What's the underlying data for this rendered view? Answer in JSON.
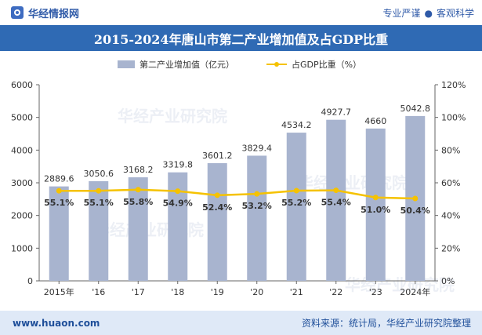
{
  "brand": {
    "name": "华经情报网",
    "logo_icon": "huajing-logo-icon"
  },
  "tagline": {
    "left": "专业严谨",
    "separator": "●",
    "right": "客观科学"
  },
  "footer": {
    "url": "www.huaon.com",
    "source": "资料来源：统计局，华经产业研究院整理"
  },
  "watermark": {
    "text": "华经产业研究院"
  },
  "colors": {
    "bar": "#a8b4cf",
    "line": "#f5c200",
    "title_bg": "#2f6ab4"
  },
  "chart_data": {
    "type": "bar",
    "title": "2015-2024年唐山市第二产业增加值及占GDP比重",
    "categories": [
      "2015年",
      "'16",
      "'17",
      "'18",
      "'19",
      "'20",
      "'21",
      "'22",
      "'23",
      "2024年"
    ],
    "series": [
      {
        "name": "第二产业增加值（亿元）",
        "type": "bar",
        "axis": "left",
        "values": [
          2889.6,
          3050.6,
          3168.2,
          3319.8,
          3601.2,
          3829.4,
          4534.2,
          4927.7,
          4660,
          5042.8
        ],
        "labels": [
          "2889.6",
          "3050.6",
          "3168.2",
          "3319.8",
          "3601.2",
          "3829.4",
          "4534.2",
          "4927.7",
          "4660",
          "5042.8"
        ]
      },
      {
        "name": "占GDP比重（%）",
        "type": "line",
        "axis": "right",
        "values": [
          55.1,
          55.1,
          55.8,
          54.9,
          52.4,
          53.2,
          55.2,
          55.4,
          51.0,
          50.4
        ],
        "labels": [
          "55.1%",
          "55.1%",
          "55.8%",
          "54.9%",
          "52.4%",
          "53.2%",
          "55.2%",
          "55.4%",
          "51.0%",
          "50.4%"
        ]
      }
    ],
    "y_left": {
      "range": [
        0,
        6000
      ],
      "ticks": [
        0,
        1000,
        2000,
        3000,
        4000,
        5000,
        6000
      ],
      "tick_labels": [
        "0",
        "1000",
        "2000",
        "3000",
        "4000",
        "5000",
        "6000"
      ]
    },
    "y_right": {
      "range": [
        0,
        120
      ],
      "ticks": [
        0,
        20,
        40,
        60,
        80,
        100,
        120
      ],
      "tick_labels": [
        "0%",
        "20%",
        "40%",
        "60%",
        "80%",
        "100%",
        "120%"
      ]
    },
    "grid": false,
    "legend": {
      "position": "top-center"
    }
  }
}
